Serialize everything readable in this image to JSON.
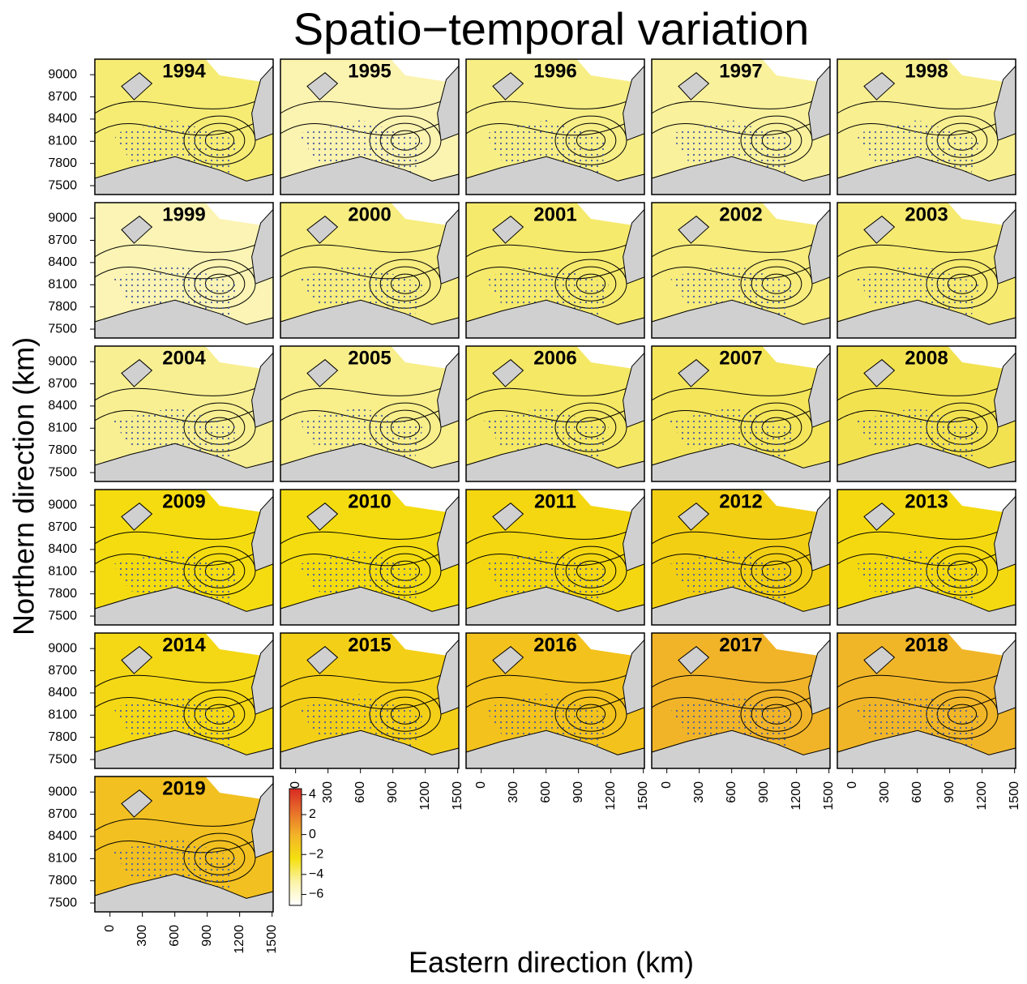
{
  "chart_data": {
    "type": "map_grid",
    "title": "Spatio−temporal variation",
    "x_label": "Eastern direction (km)",
    "y_label": "Northern direction (km)",
    "xlim": [
      -140,
      1510
    ],
    "ylim": [
      7380,
      9210
    ],
    "xticks": [
      0,
      300,
      600,
      900,
      1200,
      1500
    ],
    "yticks": [
      7500,
      7800,
      8100,
      8400,
      8700,
      9000
    ],
    "panels": [
      {
        "title": "1994",
        "color": "#f6ec74"
      },
      {
        "title": "1995",
        "color": "#fbf3b0"
      },
      {
        "title": "1996",
        "color": "#f7ee86"
      },
      {
        "title": "1997",
        "color": "#f9f19c"
      },
      {
        "title": "1998",
        "color": "#f8ef90"
      },
      {
        "title": "1999",
        "color": "#fbf4b4"
      },
      {
        "title": "2000",
        "color": "#f7ed80"
      },
      {
        "title": "2001",
        "color": "#f6ea6c"
      },
      {
        "title": "2002",
        "color": "#f7ec7c"
      },
      {
        "title": "2003",
        "color": "#f6ea70"
      },
      {
        "title": "2004",
        "color": "#f8ef92"
      },
      {
        "title": "2005",
        "color": "#f8ee8a"
      },
      {
        "title": "2006",
        "color": "#f5e864"
      },
      {
        "title": "2007",
        "color": "#f4e55a"
      },
      {
        "title": "2008",
        "color": "#f3e250"
      },
      {
        "title": "2009",
        "color": "#f4dc10"
      },
      {
        "title": "2010",
        "color": "#f4dc10"
      },
      {
        "title": "2011",
        "color": "#f4d710"
      },
      {
        "title": "2012",
        "color": "#f3cf14"
      },
      {
        "title": "2013",
        "color": "#f4d910"
      },
      {
        "title": "2014",
        "color": "#f5d815"
      },
      {
        "title": "2015",
        "color": "#f4cf18"
      },
      {
        "title": "2016",
        "color": "#f3c21c"
      },
      {
        "title": "2017",
        "color": "#f1b428"
      },
      {
        "title": "2018",
        "color": "#f1b628"
      },
      {
        "title": "2019",
        "color": "#f2c020"
      }
    ],
    "colorbar": {
      "zlim": [
        -7.1,
        4.6
      ],
      "ticks": [
        {
          "value": -6,
          "label": "−6"
        },
        {
          "value": -4,
          "label": "−4"
        },
        {
          "value": -2,
          "label": "−2"
        },
        0,
        2,
        4
      ],
      "colormap": [
        "#ffffff",
        "#fbf3a8",
        "#f4e010",
        "#f2b428",
        "#e8702a",
        "#d82a24"
      ]
    }
  }
}
